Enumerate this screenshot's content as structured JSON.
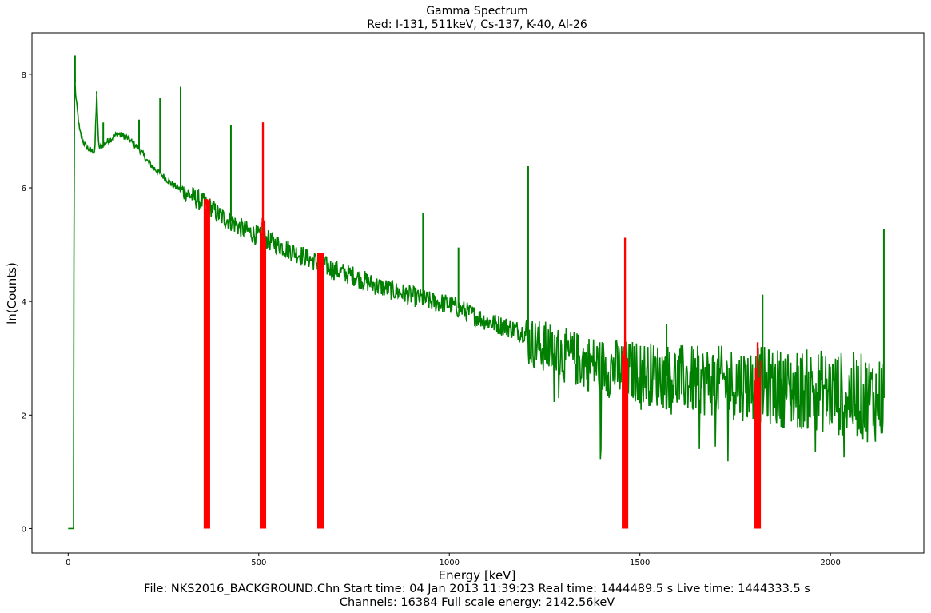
{
  "chart_data": {
    "type": "line",
    "title": "Gamma Spectrum",
    "subtitle": "Red: I-131, 511keV, Cs-137, K-40, Al-26",
    "xlabel": "Energy [keV]",
    "ylabel": "ln(Counts)",
    "footer_line1": "File: NKS2016_BACKGROUND.Chn   Start time: 04 Jan 2013 11:39:23   Real time: 1444489.5 s   Live time: 1444333.5 s",
    "footer_line2": "Channels: 16384   Full scale energy: 2142.56keV",
    "xlim": [
      -95,
      2245
    ],
    "ylim": [
      -0.43,
      8.73
    ],
    "xticks": [
      0,
      500,
      1000,
      1500,
      2000
    ],
    "yticks": [
      0,
      2,
      4,
      6,
      8
    ],
    "grid": false,
    "colors": {
      "spectrum": "#008000",
      "highlight": "#ff0000"
    },
    "series": [
      {
        "color": "#008000",
        "x": [
          0,
          14,
          15,
          17,
          18,
          20,
          25,
          30,
          40,
          50,
          60,
          70,
          75,
          80,
          90,
          100,
          110,
          120,
          130,
          140,
          150,
          160,
          175,
          185,
          200,
          210,
          225,
          250,
          275,
          300,
          325,
          350,
          375,
          400,
          430,
          450,
          500,
          550,
          600,
          650,
          700,
          750,
          800,
          850,
          900,
          950,
          1000,
          1050,
          1100,
          1150,
          1200,
          1205,
          1250,
          1300,
          1350,
          1400,
          1450,
          1500,
          1550,
          1600,
          1650,
          1700,
          1750,
          1800,
          1850,
          1900,
          1950,
          2000,
          2050,
          2100,
          2140
        ],
        "y": [
          0,
          0,
          4.5,
          8.3,
          7.85,
          7.6,
          7.3,
          7.0,
          6.8,
          6.7,
          6.65,
          6.65,
          7.65,
          6.7,
          6.75,
          6.8,
          6.85,
          6.9,
          6.95,
          6.93,
          6.9,
          6.85,
          6.75,
          6.7,
          6.55,
          6.45,
          6.35,
          6.2,
          6.05,
          5.95,
          5.85,
          5.75,
          5.65,
          5.5,
          5.4,
          5.3,
          5.15,
          5.0,
          4.85,
          4.7,
          4.55,
          4.45,
          4.3,
          4.2,
          4.1,
          4.0,
          3.95,
          3.8,
          3.65,
          3.55,
          3.45,
          3.3,
          3.2,
          3.05,
          2.95,
          2.85,
          2.8,
          2.75,
          2.7,
          2.65,
          2.6,
          2.6,
          2.55,
          2.55,
          2.5,
          2.45,
          2.45,
          2.4,
          2.35,
          2.3,
          2.3
        ]
      }
    ],
    "peaks": [
      {
        "x": 18,
        "y": 8.33
      },
      {
        "x": 75,
        "y": 7.7
      },
      {
        "x": 92,
        "y": 7.15
      },
      {
        "x": 186,
        "y": 7.2
      },
      {
        "x": 241,
        "y": 7.58
      },
      {
        "x": 295,
        "y": 7.78
      },
      {
        "x": 427,
        "y": 7.1
      },
      {
        "x": 931,
        "y": 5.55
      },
      {
        "x": 1024,
        "y": 4.95
      },
      {
        "x": 1207,
        "y": 6.38
      },
      {
        "x": 1570,
        "y": 3.6
      },
      {
        "x": 1822,
        "y": 4.12
      },
      {
        "x": 2140,
        "y": 5.27
      }
    ],
    "highlights": [
      {
        "label": "I-131",
        "x": 364,
        "ymax": 5.8
      },
      {
        "label": "511keV",
        "x": 511,
        "ymax": 7.15
      },
      {
        "label": "Cs-137",
        "x": 662,
        "ymax": 4.85
      },
      {
        "label": "K-40",
        "x": 1461,
        "ymax": 5.12
      },
      {
        "label": "Al-26",
        "x": 1809,
        "ymax": 3.28
      }
    ]
  }
}
